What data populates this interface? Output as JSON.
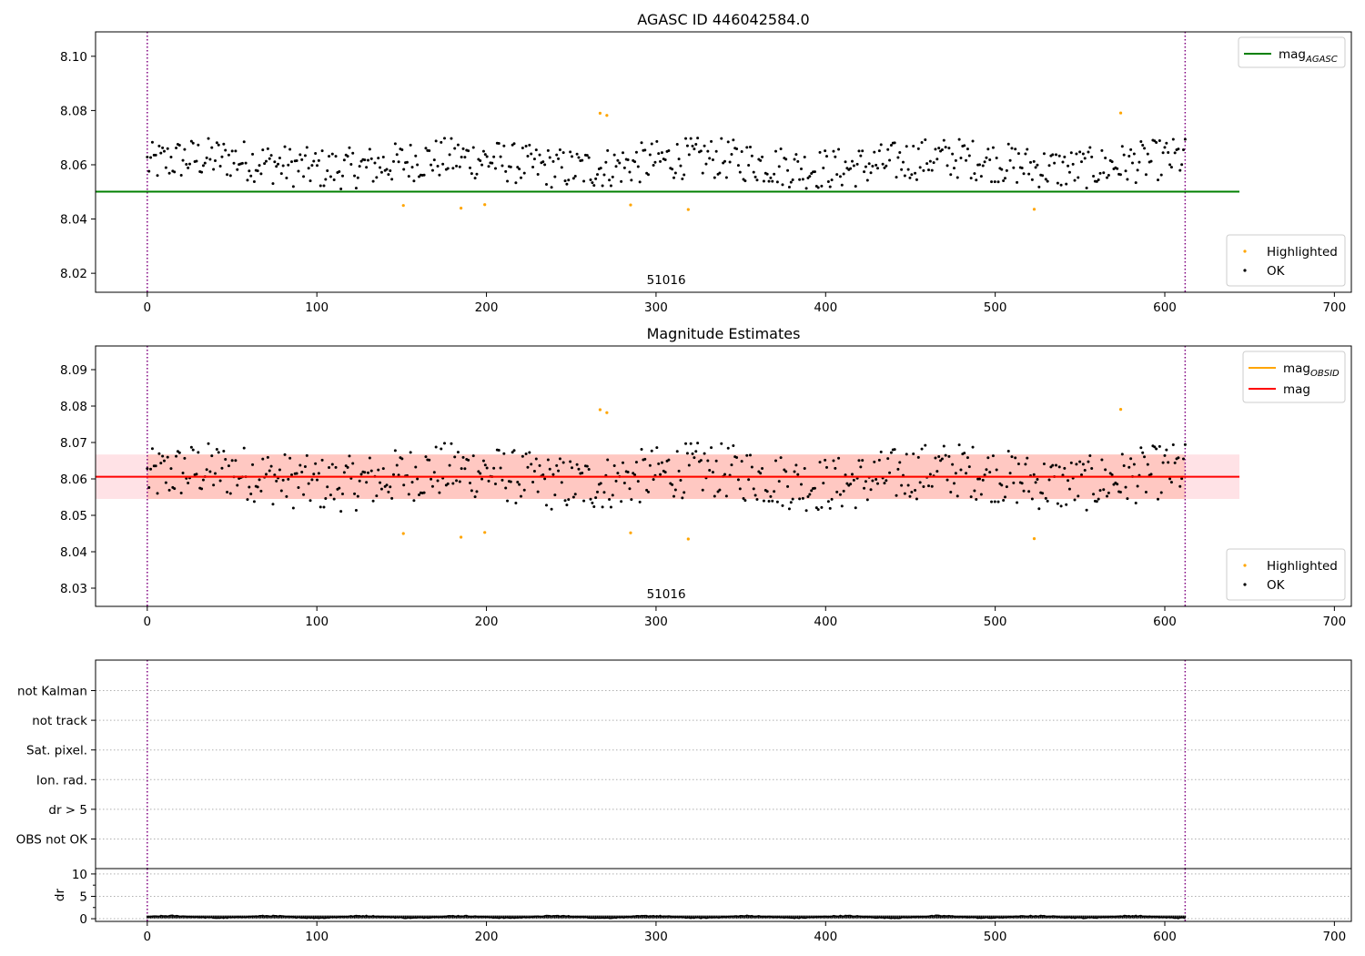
{
  "figure": {
    "obsid_marker_lines": [
      0,
      612
    ],
    "colors": {
      "ok_points": "#000000",
      "highlighted_points": "#ffa500",
      "mag_agasc_line": "#008000",
      "mag_obsid_line": "#ffa500",
      "mag_line": "#ff0000",
      "mag_obsid_band": "#ffa07a",
      "mag_band": "#ffb6c1",
      "obsid_vline": "#800080",
      "grid": "#b0b0b0"
    }
  },
  "chart_data": [
    {
      "type": "scatter",
      "title": "AGASC ID 446042584.0",
      "xlim": [
        -30.5,
        710
      ],
      "ylim": [
        8.013,
        8.109
      ],
      "xticks": [
        0,
        100,
        200,
        300,
        400,
        500,
        600,
        700
      ],
      "yticks": [
        8.02,
        8.04,
        8.06,
        8.08,
        8.1
      ],
      "ytick_labels": [
        "8.02",
        "8.04",
        "8.06",
        "8.08",
        "8.10"
      ],
      "obsid_label": {
        "text": "51016",
        "x": 306
      },
      "hlines": [
        {
          "name": "mag_AGASC",
          "y": 8.0501,
          "x": [
            -30.5,
            644
          ]
        }
      ],
      "legends": [
        {
          "placement": "top-right",
          "entries": [
            {
              "base": "mag",
              "sub": "AGASC",
              "kind": "line",
              "color_key": "mag_agasc_line"
            }
          ]
        },
        {
          "placement": "bottom-right",
          "entries": [
            {
              "label": "Highlighted",
              "kind": "point",
              "color_key": "highlighted_points"
            },
            {
              "label": "OK",
              "kind": "point",
              "color_key": "ok_points"
            }
          ]
        }
      ],
      "highlighted_points": [
        {
          "x": 151,
          "y": 8.045
        },
        {
          "x": 185,
          "y": 8.044
        },
        {
          "x": 199,
          "y": 8.0453
        },
        {
          "x": 267,
          "y": 8.079
        },
        {
          "x": 271,
          "y": 8.0782
        },
        {
          "x": 285,
          "y": 8.0452
        },
        {
          "x": 319,
          "y": 8.0435
        },
        {
          "x": 523,
          "y": 8.0436
        },
        {
          "x": 574,
          "y": 8.0791
        }
      ],
      "ok_series": {
        "x_start": 0,
        "x_end": 612,
        "count": 612,
        "baseline": 8.0605,
        "noise": 0.0095,
        "min": 8.0465,
        "max": 8.0755
      }
    },
    {
      "type": "scatter",
      "title": "Magnitude Estimates",
      "xlim": [
        -30.5,
        710
      ],
      "ylim": [
        8.025,
        8.0965
      ],
      "xticks": [
        0,
        100,
        200,
        300,
        400,
        500,
        600,
        700
      ],
      "yticks": [
        8.03,
        8.04,
        8.05,
        8.06,
        8.07,
        8.08,
        8.09
      ],
      "ytick_labels": [
        "8.03",
        "8.04",
        "8.05",
        "8.06",
        "8.07",
        "8.08",
        "8.09"
      ],
      "obsid_label": {
        "text": "51016",
        "x": 306
      },
      "hlines": [
        {
          "name": "mag_OBSID",
          "y": 8.0606,
          "x": [
            0,
            612
          ]
        },
        {
          "name": "mag",
          "y": 8.0606,
          "x": [
            -30.5,
            644
          ]
        }
      ],
      "bands": [
        {
          "name": "mag_OBSID_band",
          "y": [
            8.0545,
            8.0667
          ],
          "x": [
            0,
            612
          ]
        },
        {
          "name": "mag_band",
          "y": [
            8.0545,
            8.0667
          ],
          "x": [
            -30.5,
            644
          ]
        }
      ],
      "legends": [
        {
          "placement": "top-right",
          "entries": [
            {
              "base": "mag",
              "sub": "OBSID",
              "kind": "line",
              "color_key": "mag_obsid_line"
            },
            {
              "label": "mag",
              "kind": "line",
              "color_key": "mag_line"
            }
          ]
        },
        {
          "placement": "bottom-right",
          "entries": [
            {
              "label": "Highlighted",
              "kind": "point",
              "color_key": "highlighted_points"
            },
            {
              "label": "OK",
              "kind": "point",
              "color_key": "ok_points"
            }
          ]
        }
      ],
      "highlighted_points": [
        {
          "x": 151,
          "y": 8.045
        },
        {
          "x": 185,
          "y": 8.044
        },
        {
          "x": 199,
          "y": 8.0453
        },
        {
          "x": 267,
          "y": 8.079
        },
        {
          "x": 271,
          "y": 8.0782
        },
        {
          "x": 285,
          "y": 8.0452
        },
        {
          "x": 319,
          "y": 8.0435
        },
        {
          "x": 523,
          "y": 8.0436
        },
        {
          "x": 574,
          "y": 8.0791
        }
      ],
      "ok_series": {
        "x_start": 0,
        "x_end": 612,
        "count": 612,
        "baseline": 8.0605,
        "noise": 0.0095,
        "min": 8.0465,
        "max": 8.0755
      }
    },
    {
      "type": "scatter",
      "title": "",
      "xlim": [
        -30.5,
        710
      ],
      "categories": [
        "not Kalman",
        "not track",
        "Sat. pixel.",
        "Ion. rad.",
        "dr > 5",
        "OBS not OK"
      ],
      "grid": "dotted",
      "flag_points": []
    },
    {
      "type": "line",
      "title": "",
      "ylabel": "dr",
      "xlim": [
        -30.5,
        710
      ],
      "ylim": [
        -0.6,
        11.2
      ],
      "yticks": [
        0,
        5,
        10
      ],
      "ytick_labels": [
        "0",
        "5",
        "10"
      ],
      "xticks": [
        0,
        100,
        200,
        300,
        400,
        500,
        600,
        700
      ],
      "dr_series": {
        "x_start": 0,
        "x_end": 612,
        "count": 612,
        "typical": 0.4,
        "range": [
          0.0,
          1.0
        ]
      }
    }
  ]
}
